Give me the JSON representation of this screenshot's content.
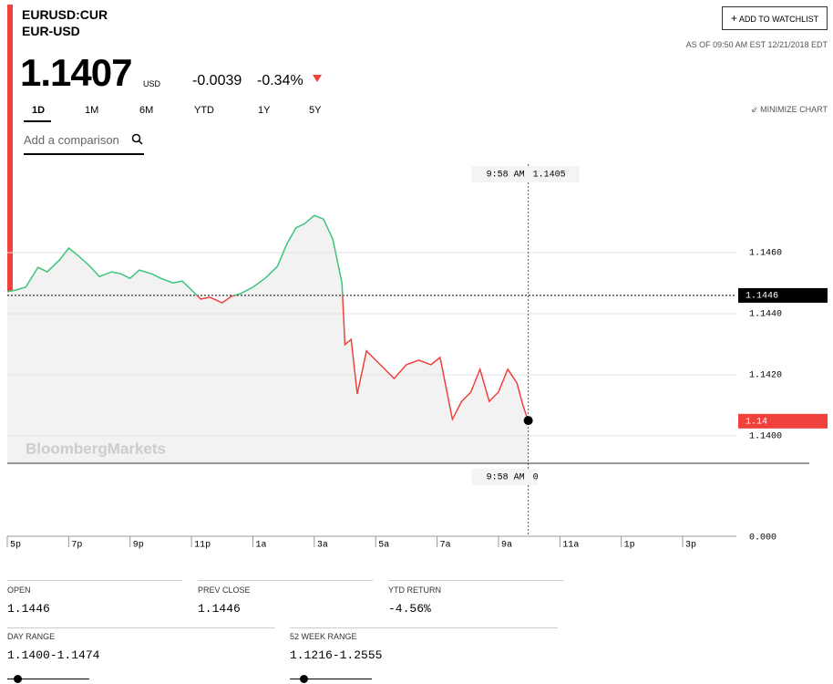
{
  "header": {
    "symbol": "EURUSD:CUR",
    "name": "EUR-USD",
    "watchlist_button": "ADD TO WATCHLIST",
    "as_of": "AS OF 09:50 AM EST 12/21/2018 EDT"
  },
  "quote": {
    "price": "1.1407",
    "currency": "USD",
    "change": "-0.0039",
    "change_pct": "-0.34%"
  },
  "tabs": [
    "1D",
    "1M",
    "6M",
    "YTD",
    "1Y",
    "5Y"
  ],
  "minimize": "MINIMIZE CHART",
  "search_placeholder": "Add a comparison",
  "stats": [
    {
      "label": "OPEN",
      "value": "1.1446"
    },
    {
      "label": "PREV CLOSE",
      "value": "1.1446"
    },
    {
      "label": "YTD RETURN",
      "value": "-4.56%"
    }
  ],
  "ranges": [
    {
      "label": "DAY RANGE",
      "value": "1.1400-1.1474"
    },
    {
      "label": "52 WEEK RANGE",
      "value": "1.1216-1.2555"
    }
  ],
  "chart_data": {
    "type": "line",
    "watermark": "BloombergMarkets",
    "x": [
      0,
      0.3,
      0.6,
      1.0,
      1.3,
      1.7,
      2.0,
      2.3,
      2.7,
      3.0,
      3.4,
      3.7,
      4.0,
      4.3,
      4.7,
      5.0,
      5.4,
      5.7,
      6.0,
      6.3,
      6.6,
      7.0,
      7.3,
      7.6,
      8.0,
      8.4,
      8.8,
      9.1,
      9.4,
      9.7,
      10.0,
      10.3,
      10.6,
      10.9,
      11.0,
      11.2,
      11.4,
      11.7,
      12.0,
      12.3,
      12.6,
      13.0,
      13.4,
      13.8,
      14.1,
      14.5,
      14.8,
      15.1,
      15.4,
      15.7,
      16.0,
      16.3,
      16.6,
      16.8,
      16.97
    ],
    "series": [
      {
        "values": [
          1.14472,
          1.14478,
          1.14487,
          1.14552,
          1.14537,
          1.14576,
          1.14615,
          1.14591,
          1.14555,
          1.14522,
          1.14537,
          1.14531,
          1.14516,
          1.14543,
          1.14531,
          1.14516,
          1.14501,
          1.14507,
          1.14478,
          1.14448,
          1.14454,
          1.14436,
          1.14457,
          1.14466,
          1.14487,
          1.14516,
          1.14555,
          1.14627,
          1.14681,
          1.14696,
          1.14722,
          1.1471,
          1.14645,
          1.14501,
          1.14299,
          1.14316,
          1.14137,
          1.14278,
          1.14248,
          1.14218,
          1.14188,
          1.14233,
          1.14248,
          1.14233,
          1.14257,
          1.14054,
          1.14113,
          1.14143,
          1.14218,
          1.14113,
          1.14143,
          1.14218,
          1.14173,
          1.14099,
          1.14048
        ]
      }
    ],
    "up_color": "#3cc47c",
    "down_color": "#f0413c",
    "baseline": 1.1446,
    "last_label": "1.14",
    "crosshair": {
      "time": "9:58 AM",
      "value": 1.1405,
      "volume": 0
    },
    "xlim": [
      0,
      23.75
    ],
    "xticks": [
      {
        "value": 0,
        "label": "5p"
      },
      {
        "value": 2,
        "label": "7p"
      },
      {
        "value": 4,
        "label": "9p"
      },
      {
        "value": 6,
        "label": "11p"
      },
      {
        "value": 8,
        "label": "1a"
      },
      {
        "value": 10,
        "label": "3a"
      },
      {
        "value": 12,
        "label": "5a"
      },
      {
        "value": 14,
        "label": "7a"
      },
      {
        "value": 16,
        "label": "9a"
      },
      {
        "value": 18,
        "label": "11a"
      },
      {
        "value": 20,
        "label": "1p"
      },
      {
        "value": 22,
        "label": "3p"
      }
    ],
    "ylim": [
      1.1391,
      1.1489
    ],
    "yticks": [
      {
        "value": 1.146,
        "label": "1.1460"
      },
      {
        "value": 1.144,
        "label": "1.1440"
      },
      {
        "value": 1.142,
        "label": "1.1420"
      },
      {
        "value": 1.14,
        "label": "1.1400"
      }
    ],
    "volume_yticks": [
      {
        "value": 0,
        "label": "0.000"
      }
    ],
    "grid": true
  }
}
